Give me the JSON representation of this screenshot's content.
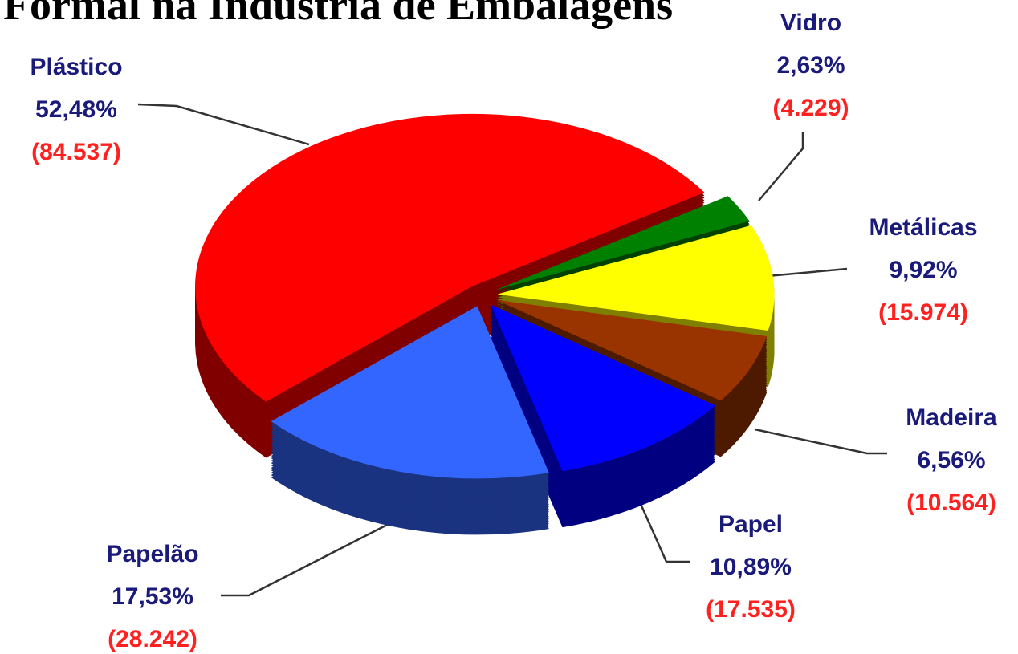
{
  "chart_data": {
    "type": "pie",
    "title": "Formal na Indústria de Embalagens",
    "categories": [
      "Vidro",
      "Metálicas",
      "Madeira",
      "Papel",
      "Papelão",
      "Plástico"
    ],
    "values": [
      2.63,
      9.92,
      6.56,
      10.89,
      17.53,
      52.48
    ],
    "value_labels": [
      "2,63%",
      "9,92%",
      "6,56%",
      "10,89%",
      "17,53%",
      "52,48%"
    ],
    "counts": [
      4229,
      15974,
      10564,
      17535,
      28242,
      84537
    ],
    "count_labels": [
      "(4.229)",
      "(15.974)",
      "(10.564)",
      "(17.535)",
      "(28.242)",
      "(84.537)"
    ],
    "colors": [
      "#008000",
      "#ffff00",
      "#993300",
      "#0000ff",
      "#3366ff",
      "#ff0000"
    ]
  }
}
